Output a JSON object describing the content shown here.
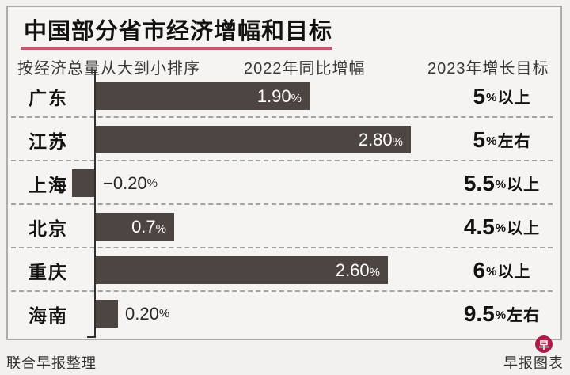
{
  "title": "中国部分省市经济增幅和目标",
  "headers": {
    "sort_note": "按经济总量从大到小排序",
    "col_2022": "2022年同比增幅",
    "col_2023": "2023年增长目标"
  },
  "percent_sign": "%",
  "rows": [
    {
      "region": "广东",
      "value": 1.9,
      "value_label": "1.90",
      "target_num": "5",
      "target_suffix": "以上"
    },
    {
      "region": "江苏",
      "value": 2.8,
      "value_label": "2.80",
      "target_num": "5",
      "target_suffix": "左右"
    },
    {
      "region": "上海",
      "value": -0.2,
      "value_label": "−0.20",
      "target_num": "5.5",
      "target_suffix": "以上"
    },
    {
      "region": "北京",
      "value": 0.7,
      "value_label": "0.7",
      "target_num": "4.5",
      "target_suffix": "以上"
    },
    {
      "region": "重庆",
      "value": 2.6,
      "value_label": "2.60",
      "target_num": "6",
      "target_suffix": "以上"
    },
    {
      "region": "海南",
      "value": 0.2,
      "value_label": "0.20",
      "target_num": "9.5",
      "target_suffix": "左右"
    }
  ],
  "footer": {
    "left": "联合早报整理",
    "right": "早报图表",
    "badge_char": "早"
  },
  "colors": {
    "bar": "#4c4542",
    "accent_underline": "#c05a70",
    "badge_red": "#ad1c46"
  },
  "chart_data": {
    "type": "bar",
    "orientation": "horizontal",
    "title": "中国部分省市经济增幅和目标",
    "sort_note": "按经济总量从大到小排序",
    "categories": [
      "广东",
      "江苏",
      "上海",
      "北京",
      "重庆",
      "海南"
    ],
    "series": [
      {
        "name": "2022年同比增幅",
        "unit": "%",
        "values": [
          1.9,
          2.8,
          -0.2,
          0.7,
          2.6,
          0.2
        ]
      },
      {
        "name": "2023年增长目标",
        "values": [
          "5%以上",
          "5%左右",
          "5.5%以上",
          "4.5%以上",
          "6%以上",
          "9.5%左右"
        ]
      }
    ],
    "xlim": [
      -0.4,
      4.2
    ],
    "grid": false,
    "value_labels_shown": true,
    "source_note": "联合早报整理",
    "credit": "早报图表"
  }
}
